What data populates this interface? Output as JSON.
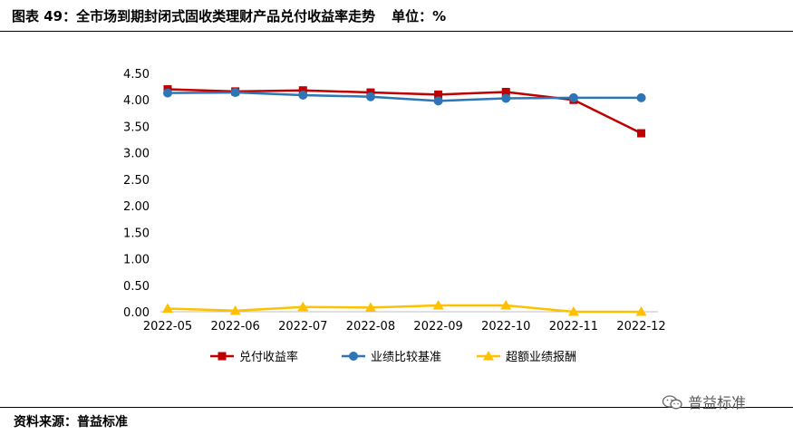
{
  "header": {
    "title": "图表 49：全市场到期封闭式固收类理财产品兑付收益率走势",
    "unit": "单位：%"
  },
  "footer": {
    "source": "资料来源：普益标准",
    "watermark": "普益标准"
  },
  "chart_data": {
    "type": "line",
    "title": "全市场到期封闭式固收类理财产品兑付收益率走势",
    "categories": [
      "2022-05",
      "2022-06",
      "2022-07",
      "2022-08",
      "2022-09",
      "2022-10",
      "2022-11",
      "2022-12"
    ],
    "ylim": [
      0,
      4.5
    ],
    "yticks": [
      "0.00",
      "0.50",
      "1.00",
      "1.50",
      "2.00",
      "2.50",
      "3.00",
      "3.50",
      "4.00",
      "4.50"
    ],
    "legend_position": "bottom",
    "series": [
      {
        "name": "兑付收益率",
        "color": "#c00000",
        "marker": "square",
        "values": [
          4.2,
          4.16,
          4.18,
          4.14,
          4.1,
          4.15,
          4.0,
          3.37
        ]
      },
      {
        "name": "业绩比较基准",
        "color": "#2e75b6",
        "marker": "circle",
        "values": [
          4.13,
          4.14,
          4.09,
          4.06,
          3.98,
          4.03,
          4.04,
          4.04
        ]
      },
      {
        "name": "超额业绩报酬",
        "color": "#ffc000",
        "marker": "triangle",
        "values": [
          0.06,
          0.02,
          0.09,
          0.08,
          0.12,
          0.12,
          0.0,
          0.0
        ]
      }
    ]
  }
}
